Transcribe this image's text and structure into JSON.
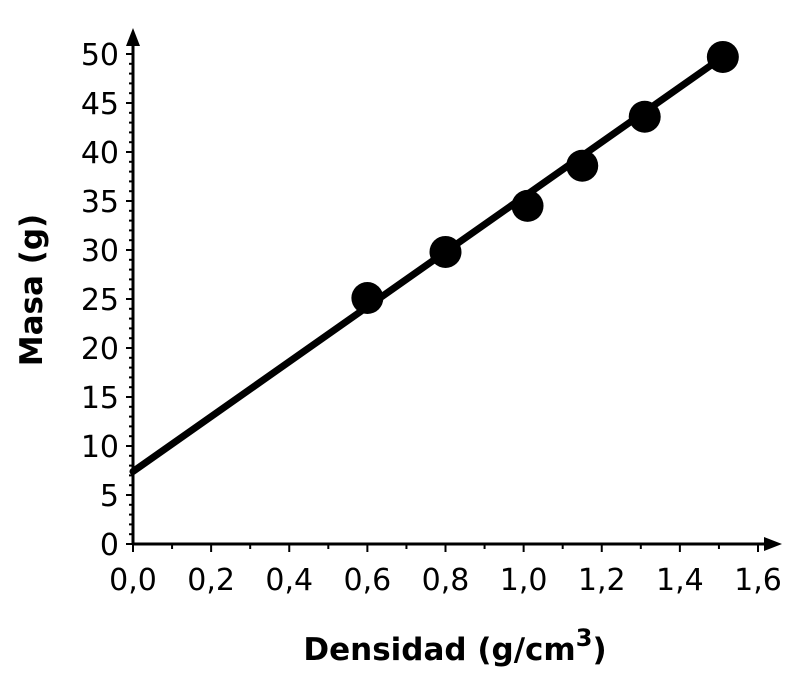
{
  "chart_data": {
    "type": "scatter",
    "xlabel": "Densidad (g/cm",
    "xlabel_sup": "3",
    "xlabel_close": ")",
    "ylabel": "Masa (g)",
    "xlim": [
      0.0,
      1.6
    ],
    "ylim": [
      0,
      50
    ],
    "x_ticks": [
      "0,0",
      "0,2",
      "0,4",
      "0,6",
      "0,8",
      "1,0",
      "1,2",
      "1,4",
      "1,6"
    ],
    "y_ticks": [
      "0",
      "5",
      "10",
      "15",
      "20",
      "25",
      "30",
      "35",
      "40",
      "45",
      "50"
    ],
    "grid": false,
    "points": [
      {
        "x": 0.6,
        "y": 25.1
      },
      {
        "x": 0.8,
        "y": 29.8
      },
      {
        "x": 1.01,
        "y": 34.5
      },
      {
        "x": 1.15,
        "y": 38.6
      },
      {
        "x": 1.31,
        "y": 43.6
      },
      {
        "x": 1.51,
        "y": 49.7
      }
    ],
    "fit_line": {
      "x": [
        0.0,
        1.51
      ],
      "y": [
        7.4,
        49.7
      ]
    },
    "colors": {
      "marks": "#000000",
      "background": "#ffffff"
    }
  }
}
